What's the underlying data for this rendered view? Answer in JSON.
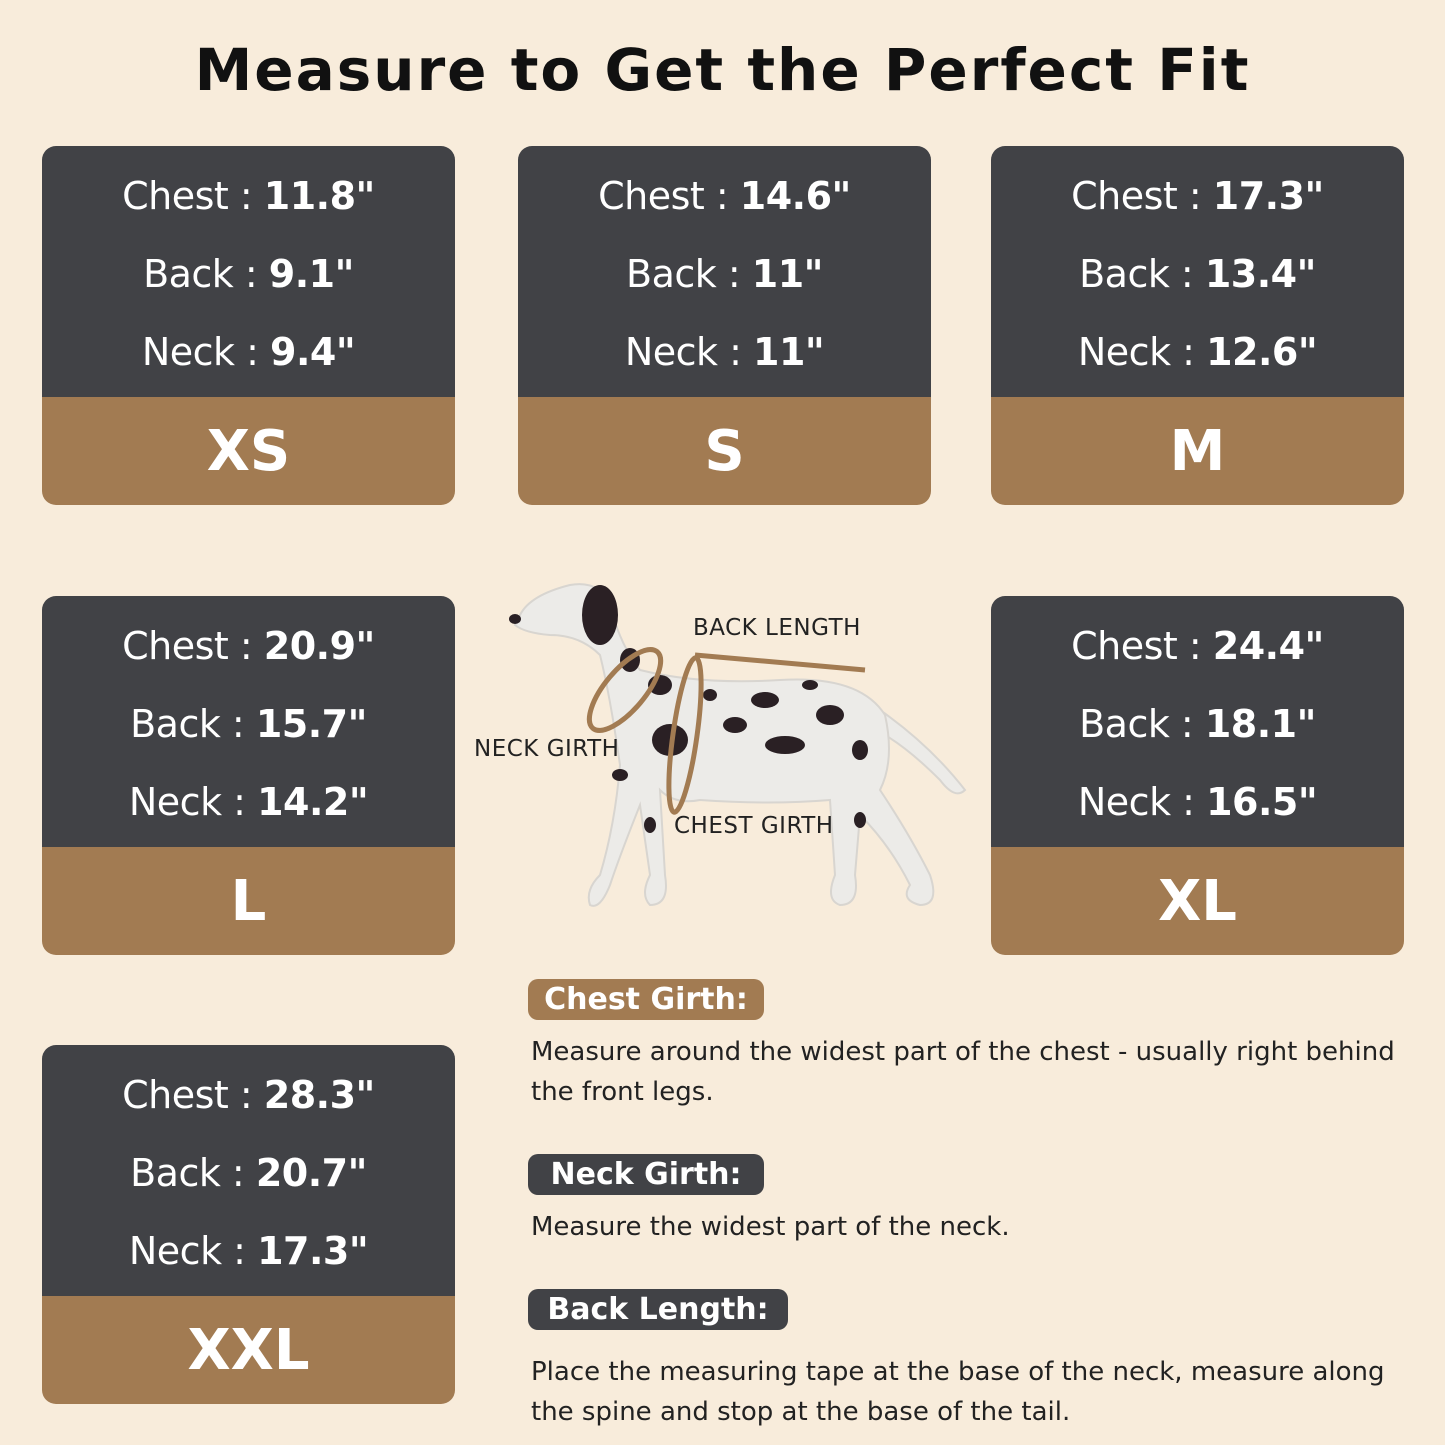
{
  "title": "Measure to Get the Perfect Fit",
  "colors": {
    "background": "#f8ecdb",
    "card_dark": "#414246",
    "card_accent": "#a27b52"
  },
  "sizes": [
    {
      "size": "XS",
      "chest_label": "Chest :",
      "chest": "11.8\"",
      "back_label": "Back :",
      "back": "9.1\"",
      "neck_label": "Neck :",
      "neck": "9.4\""
    },
    {
      "size": "S",
      "chest_label": "Chest :",
      "chest": "14.6\"",
      "back_label": "Back :",
      "back": "11\"",
      "neck_label": "Neck :",
      "neck": "11\""
    },
    {
      "size": "M",
      "chest_label": "Chest :",
      "chest": "17.3\"",
      "back_label": "Back :",
      "back": "13.4\"",
      "neck_label": "Neck :",
      "neck": "12.6\""
    },
    {
      "size": "L",
      "chest_label": "Chest :",
      "chest": "20.9\"",
      "back_label": "Back :",
      "back": "15.7\"",
      "neck_label": "Neck :",
      "neck": "14.2\""
    },
    {
      "size": "XL",
      "chest_label": "Chest :",
      "chest": "24.4\"",
      "back_label": "Back :",
      "back": "18.1\"",
      "neck_label": "Neck :",
      "neck": "16.5\""
    },
    {
      "size": "XXL",
      "chest_label": "Chest :",
      "chest": "28.3\"",
      "back_label": "Back :",
      "back": "20.7\"",
      "neck_label": "Neck :",
      "neck": "17.3\""
    }
  ],
  "diagram": {
    "back_length": "BACK LENGTH",
    "neck_girth": "NECK GIRTH",
    "chest_girth": "CHEST GIRTH"
  },
  "instructions": [
    {
      "label": "Chest Girth:",
      "text": "Measure around the widest part of the chest - usually right behind the front legs."
    },
    {
      "label": "Neck Girth:",
      "text": "Measure the widest part of the neck."
    },
    {
      "label": "Back Length:",
      "text": "Place the measuring tape at the base of the neck, measure along the spine and stop at the base of the tail."
    }
  ]
}
